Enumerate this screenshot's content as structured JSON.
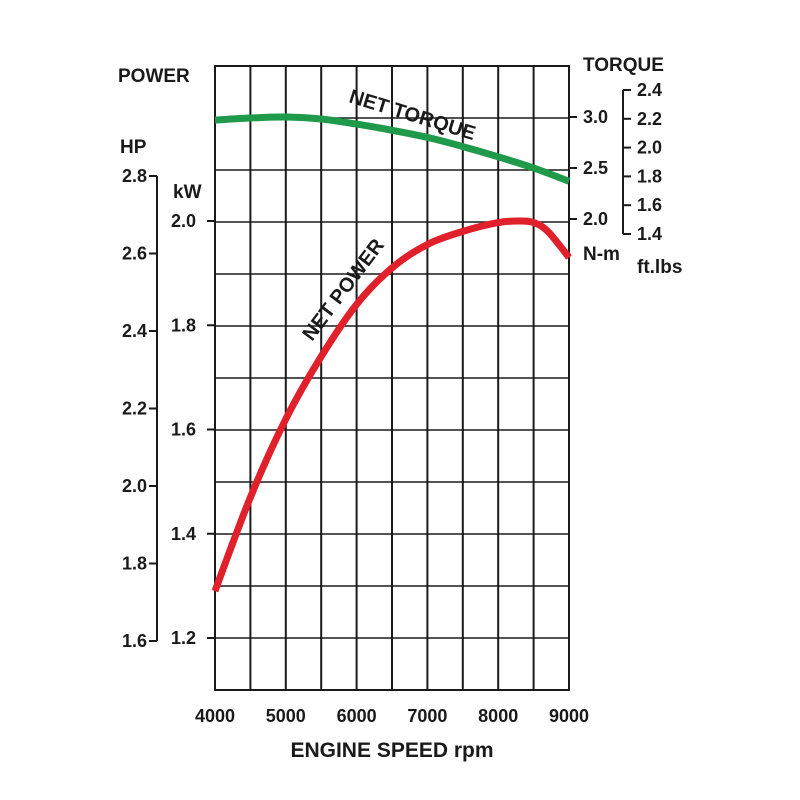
{
  "chart_data": {
    "type": "line",
    "xlabel": "ENGINE SPEED rpm",
    "x_ticks": [
      "4000",
      "5000",
      "6000",
      "7000",
      "8000",
      "9000"
    ],
    "xlim": [
      4000,
      9000
    ],
    "left_axis_title": "POWER",
    "hp_unit": "HP",
    "hp_ticks": [
      "1.6",
      "1.8",
      "2.0",
      "2.2",
      "2.4",
      "2.6",
      "2.8"
    ],
    "hp_lim": [
      1.6,
      2.8
    ],
    "kw_unit": "kW",
    "kw_ticks": [
      "1.2",
      "1.4",
      "1.6",
      "1.8",
      "2.0"
    ],
    "kw_lim": [
      1.2,
      2.0
    ],
    "right_axis_title": "TORQUE",
    "nm_unit": "N-m",
    "nm_ticks": [
      "2.0",
      "2.5",
      "3.0"
    ],
    "nm_lim": [
      2.0,
      3.0
    ],
    "ftlbs_unit": "ft.lbs",
    "ftlbs_ticks": [
      "1.4",
      "1.6",
      "1.8",
      "2.0",
      "2.2",
      "2.4"
    ],
    "ftlbs_lim": [
      1.4,
      2.4
    ],
    "series": [
      {
        "name": "NET TORQUE",
        "axis": "N-m",
        "color": "#1f9a4a",
        "x": [
          4000,
          4500,
          5000,
          5500,
          6000,
          6500,
          7000,
          7500,
          8000,
          8500,
          9000
        ],
        "y": [
          2.97,
          2.99,
          3.0,
          2.98,
          2.93,
          2.87,
          2.8,
          2.71,
          2.61,
          2.5,
          2.37
        ]
      },
      {
        "name": "NET POWER",
        "axis": "kW",
        "color": "#e0202a",
        "x": [
          4000,
          4500,
          5000,
          5500,
          6000,
          6500,
          7000,
          7500,
          8000,
          8300,
          8500,
          8700,
          9000
        ],
        "y": [
          1.29,
          1.47,
          1.62,
          1.74,
          1.84,
          1.91,
          1.955,
          1.98,
          1.997,
          2.0,
          1.997,
          1.98,
          1.93
        ]
      }
    ]
  }
}
